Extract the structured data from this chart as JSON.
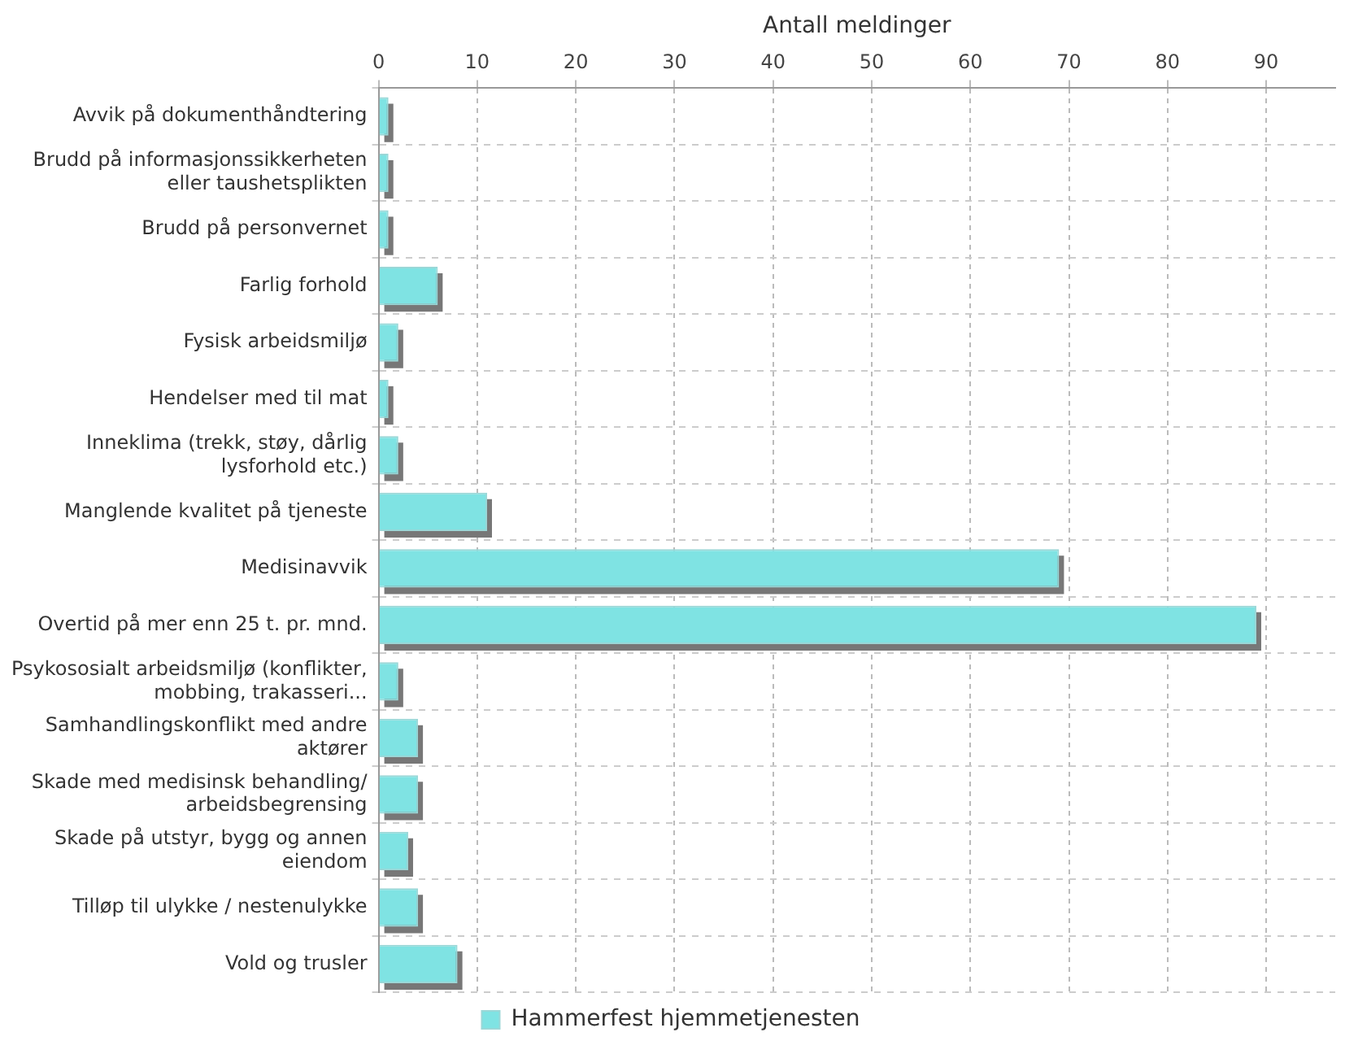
{
  "chart_data": {
    "type": "bar",
    "orientation": "horizontal",
    "xlabel": "Antall meldinger",
    "categories": [
      "Avvik på dokumenthåndtering",
      "Brudd på informasjonssikkerheten eller taushetsplikten",
      "Brudd på personvernet",
      "Farlig forhold",
      "Fysisk arbeidsmiljø",
      "Hendelser med til mat",
      "Inneklima (trekk, støy, dårlig lysforhold etc.)",
      "Manglende kvalitet på tjeneste",
      "Medisinavvik",
      "Overtid på mer enn 25 t. pr. mnd.",
      "Psykososialt arbeidsmiljø (konflikter, mobbing, trakasseri...",
      "Samhandlingskonflikt med andre aktører",
      "Skade med medisinsk behandling/ arbeidsbegrensing",
      "Skade på utstyr, bygg og annen eiendom",
      "Tilløp til ulykke / nestenulykke",
      "Vold og trusler"
    ],
    "series": [
      {
        "name": "Hammerfest hjemmetjenesten",
        "color": "#7fe3e3",
        "values": [
          1,
          1,
          1,
          6,
          2,
          1,
          2,
          11,
          69,
          89,
          2,
          4,
          4,
          3,
          4,
          8
        ]
      }
    ],
    "xlim": [
      0,
      97
    ],
    "xticks": [
      0,
      10,
      20,
      30,
      40,
      50,
      60,
      70,
      80,
      90
    ],
    "grid": true,
    "legend": "bottom"
  }
}
